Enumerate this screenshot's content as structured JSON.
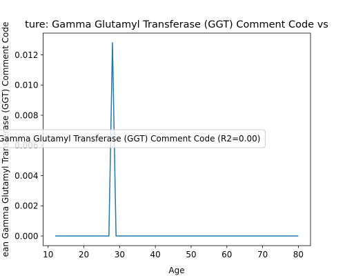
{
  "chart_data": {
    "type": "line",
    "title": "ture: Gamma Glutamyl Transferase (GGT) Comment Code vs",
    "xlabel": "Age",
    "ylabel": "ean Gamma Glutamyl Transferase (GGT) Comment Code",
    "xlim": [
      8.6,
      83.4
    ],
    "ylim": [
      -0.00064,
      0.01344
    ],
    "x_ticks": [
      10,
      20,
      30,
      40,
      50,
      60,
      70,
      80
    ],
    "y_ticks": [
      0.0,
      0.002,
      0.004,
      0.006,
      0.008,
      0.01,
      0.012
    ],
    "grid": false,
    "legend_position": "center-left",
    "series": [
      {
        "name": "Gamma Glutamyl Transferase (GGT) Comment Code (R2=0.00)",
        "color": "#1f77b4",
        "x": [
          12,
          27,
          28,
          29,
          80
        ],
        "y": [
          0,
          0,
          0.0128,
          0,
          0
        ]
      }
    ]
  }
}
